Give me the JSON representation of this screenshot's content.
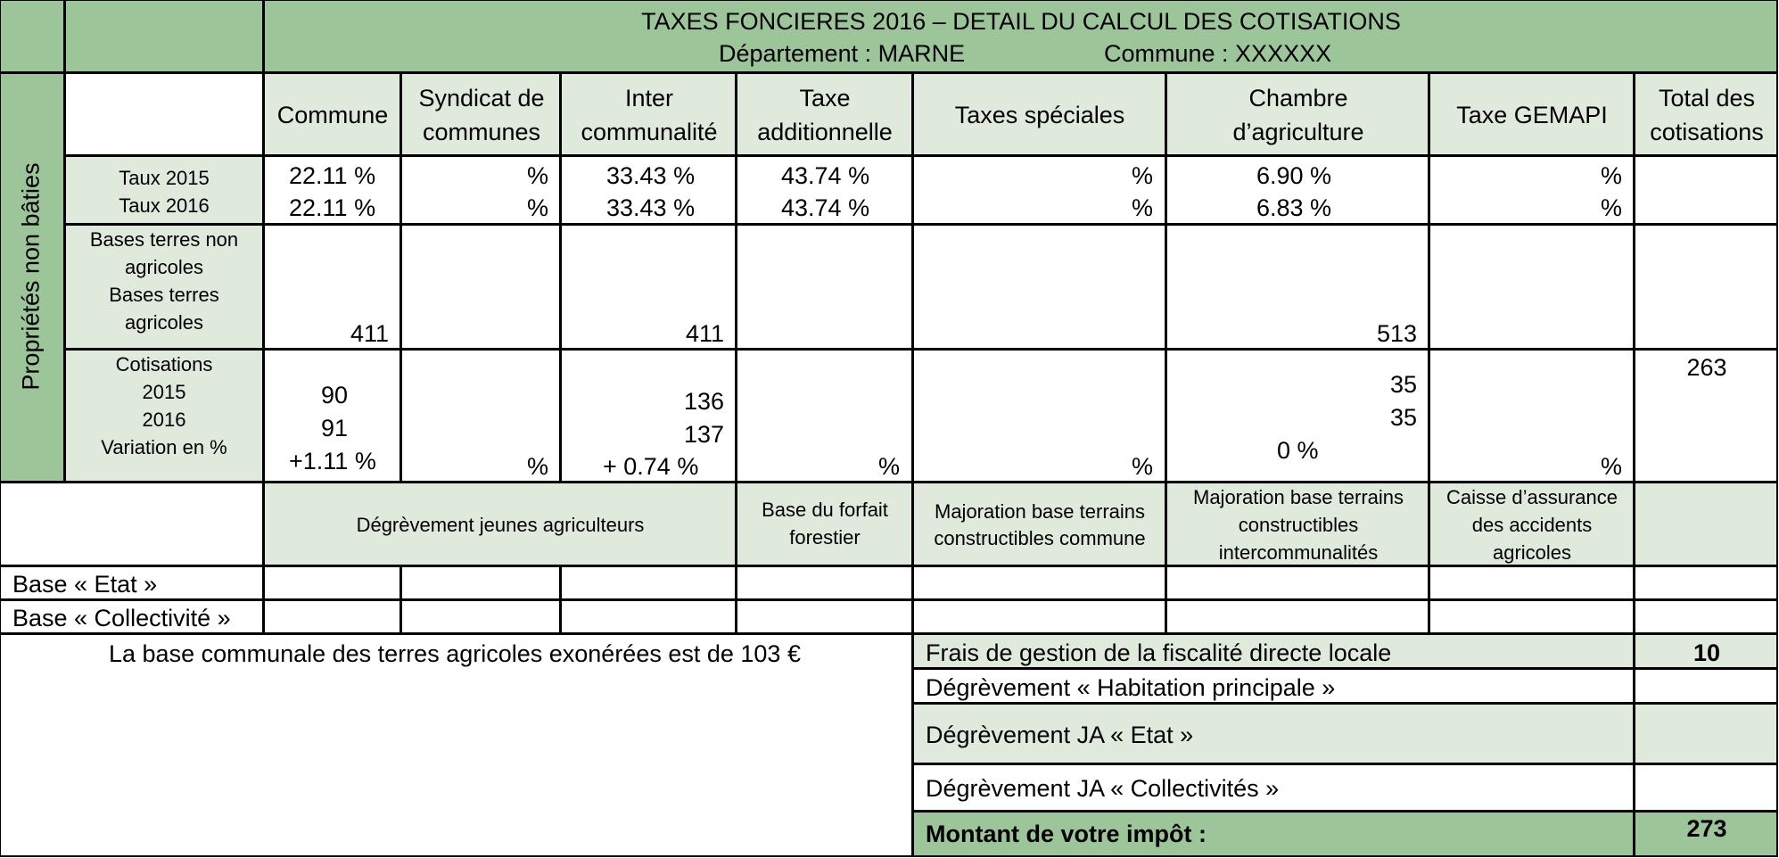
{
  "header": {
    "title": "TAXES FONCIERES 2016 – DETAIL DU CALCUL DES COTISATIONS",
    "departement": "Département : MARNE",
    "commune": "Commune : XXXXXX"
  },
  "side_label": "Propriétés non bâties",
  "columns": {
    "commune": "Commune",
    "syndicat": [
      "Syndicat de",
      "communes"
    ],
    "inter": [
      "Inter",
      "communalité"
    ],
    "taxe_add": [
      "Taxe",
      "additionnelle"
    ],
    "speciales": "Taxes spéciales",
    "chambre": [
      "Chambre",
      "d’agriculture"
    ],
    "gemapi": "Taxe GEMAPI",
    "total": [
      "Total des",
      "cotisations"
    ]
  },
  "rows": {
    "taux": {
      "label_2015": "Taux 2015",
      "label_2016": "Taux 2016",
      "commune": [
        "22.11 %",
        "22.11 %"
      ],
      "syndicat": [
        "%",
        "%"
      ],
      "inter": [
        "33.43 %",
        "33.43 %"
      ],
      "taxe_add": [
        "43.74 %",
        "43.74 %"
      ],
      "speciales": [
        "%",
        "%"
      ],
      "chambre": [
        "6.90 %",
        "6.83 %"
      ],
      "gemapi": [
        "%",
        "%"
      ]
    },
    "bases": {
      "label": [
        "Bases terres non",
        "agricoles",
        "Bases terres",
        "agricoles"
      ],
      "commune": "411",
      "inter": "411",
      "chambre": "513"
    },
    "cotisations": {
      "label": [
        "Cotisations",
        "2015",
        "2016",
        "Variation en %"
      ],
      "commune": [
        "90",
        "91",
        "+1.11 %"
      ],
      "syndicat": "%",
      "inter": [
        "136",
        "137",
        "+ 0.74 %"
      ],
      "taxe_add": "%",
      "speciales": "%",
      "chambre": [
        "35",
        "35",
        "0 %"
      ],
      "gemapi": "%",
      "total": "263"
    }
  },
  "lower_headers": {
    "degrevement_ja": "Dégrèvement jeunes agriculteurs",
    "forfait": [
      "Base du forfait",
      "forestier"
    ],
    "maj_commune": [
      "Majoration base terrains",
      "constructibles commune"
    ],
    "maj_interco": [
      "Majoration base terrains",
      "constructibles",
      "intercommunalités"
    ],
    "caisse": [
      "Caisse d’assurance",
      "des accidents",
      "agricoles"
    ]
  },
  "base_rows": {
    "etat": "Base « Etat »",
    "collectivite": "Base « Collectivité »"
  },
  "note": "La base communale des terres agricoles exonérées est de 103 €",
  "summary": {
    "frais_label": "Frais de gestion de la fiscalité directe locale",
    "frais_value": "10",
    "habitation_label": "Dégrèvement « Habitation principale »",
    "ja_etat_label": "Dégrèvement JA « Etat »",
    "ja_collectivites_label": "Dégrèvement JA « Collectivités »",
    "montant_label": "Montant de votre impôt :",
    "montant_value": "273"
  },
  "colors": {
    "header_green": "#9cc69a",
    "light_green": "#dfeadd",
    "border": "#000000"
  }
}
